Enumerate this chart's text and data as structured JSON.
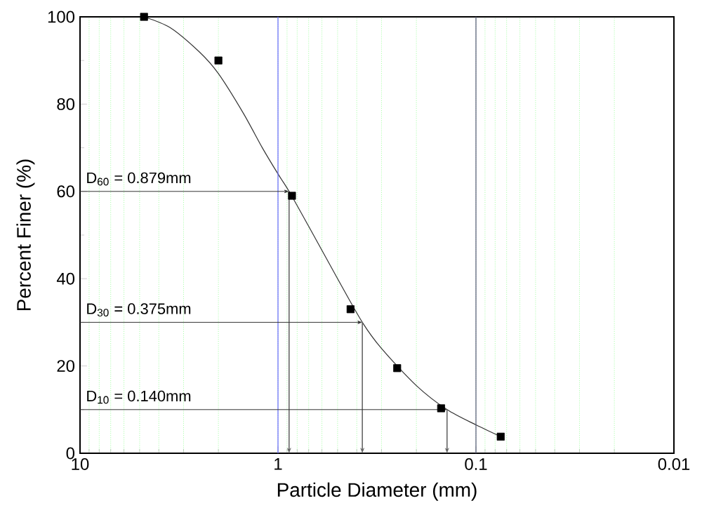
{
  "chart_data": {
    "type": "scatter",
    "xlabel": "Particle Diameter (mm)",
    "ylabel": "Percent Finer (%)",
    "log": "x",
    "xlim": [
      10,
      0.01
    ],
    "xticks": [
      10,
      {
        "value": 9,
        "label": null
      },
      {
        "value": 8,
        "label": null
      },
      {
        "value": 7,
        "label": null
      },
      {
        "value": 6,
        "label": null
      },
      {
        "value": 5,
        "label": null
      },
      {
        "value": 4,
        "label": null
      },
      {
        "value": 3,
        "label": null
      },
      {
        "value": 2,
        "label": null
      },
      1,
      {
        "value": 0.9,
        "label": null
      },
      {
        "value": 0.8,
        "label": null
      },
      {
        "value": 0.7,
        "label": null
      },
      {
        "value": 0.6,
        "label": null
      },
      {
        "value": 0.5,
        "label": null
      },
      {
        "value": 0.4,
        "label": null
      },
      {
        "value": 0.3,
        "label": null
      },
      {
        "value": 0.2,
        "label": null
      },
      0.1,
      {
        "value": 0.09,
        "label": null
      },
      {
        "value": 0.08,
        "label": null
      },
      {
        "value": 0.07,
        "label": null
      },
      {
        "value": 0.06,
        "label": null
      },
      {
        "value": 0.05,
        "label": null
      },
      {
        "value": 0.04,
        "label": null
      },
      {
        "value": 0.03,
        "label": null
      },
      {
        "value": 0.02,
        "label": null
      },
      0.01
    ],
    "ylim": [
      0,
      100
    ],
    "yticks": [
      0,
      20,
      40,
      60,
      80,
      100
    ],
    "grid": "x",
    "series": [
      {
        "type": "line",
        "color": "#333333",
        "marker": "none",
        "x": [
          4.75,
          3.5,
          2.5,
          2.0,
          1.5,
          1.2,
          1.0,
          0.879,
          0.7,
          0.5,
          0.375,
          0.3,
          0.2,
          0.14,
          0.1,
          0.075
        ],
        "values": [
          100,
          97.5,
          92,
          87,
          78,
          70,
          64,
          60,
          52,
          40,
          30,
          24,
          15.5,
          10,
          6.5,
          3.8
        ]
      },
      {
        "color": "#000000",
        "marker": "square",
        "x": [
          4.75,
          2.0,
          0.85,
          0.43,
          0.25,
          0.15,
          0.075
        ],
        "values": [
          100,
          90,
          59,
          33,
          19.5,
          10.3,
          3.8
        ]
      }
    ],
    "ref_lines": [
      {
        "axis": "x",
        "value": 1,
        "color": "#6666ff"
      },
      {
        "axis": "x",
        "value": 0.1,
        "color": "#555577"
      }
    ],
    "annotations": [
      {
        "text": "D$_{60}$ = 0.879mm",
        "x": 0.879,
        "y": 60
      },
      {
        "text": "D$_{30}$ = 0.375mm",
        "x": 0.375,
        "y": 30
      },
      {
        "text": "D$_{10}$ = 0.140mm",
        "x": 0.14,
        "y": 10
      }
    ]
  }
}
